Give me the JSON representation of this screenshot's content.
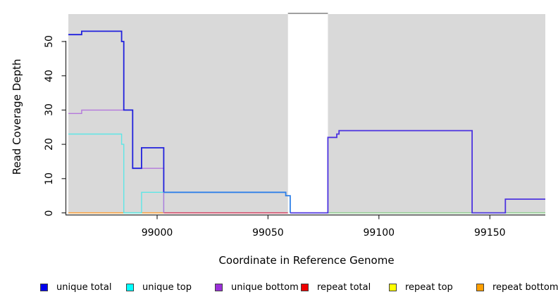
{
  "chart_data": {
    "type": "line",
    "title": "",
    "xlabel": "Coordinate in Reference Genome",
    "ylabel": "Read Coverage Depth",
    "xlim": [
      98960,
      99175
    ],
    "ylim": [
      0,
      58
    ],
    "xticks": [
      99000,
      99050,
      99100,
      99150
    ],
    "yticks": [
      0,
      10,
      20,
      30,
      40,
      50
    ],
    "grid": false,
    "legend_position": "bottom",
    "background": "#d9d9d9",
    "masked_region": {
      "x1": 99059,
      "x2": 99077,
      "fill": "#ffffff",
      "border_top": "#a0a0a0"
    },
    "step_semantics": "each [x,y] pair holds value y from x until the next pair's x",
    "series": [
      {
        "name": "unique total",
        "color": "#0000ee",
        "steps": [
          [
            98960,
            52
          ],
          [
            98966,
            53
          ],
          [
            98984,
            50
          ],
          [
            98985,
            30
          ],
          [
            98989,
            13
          ],
          [
            98993,
            19
          ],
          [
            99003,
            6
          ],
          [
            99058,
            5
          ],
          [
            99060,
            0
          ],
          [
            99077,
            22
          ],
          [
            99081,
            23
          ],
          [
            99082,
            24
          ],
          [
            99142,
            0
          ],
          [
            99157,
            4
          ],
          [
            99175,
            4
          ]
        ]
      },
      {
        "name": "unique top",
        "color": "#00ffff",
        "steps": [
          [
            98960,
            23
          ],
          [
            98984,
            20
          ],
          [
            98985,
            0
          ],
          [
            98993,
            6
          ],
          [
            99003,
            0
          ],
          [
            99175,
            0
          ]
        ]
      },
      {
        "name": "unique bottom",
        "color": "#9b30d9",
        "steps": [
          [
            98960,
            29
          ],
          [
            98966,
            30
          ],
          [
            98989,
            13
          ],
          [
            99003,
            0
          ],
          [
            99175,
            0
          ]
        ]
      },
      {
        "name": "repeat total",
        "color": "#ee0000",
        "steps": [
          [
            98960,
            0
          ],
          [
            99175,
            0
          ]
        ]
      },
      {
        "name": "repeat top",
        "color": "#ffff00",
        "steps": [
          [
            98960,
            0
          ],
          [
            99175,
            0
          ]
        ]
      },
      {
        "name": "repeat bottom",
        "color": "#ff9f00",
        "steps": [
          [
            98960,
            0
          ],
          [
            99175,
            0
          ]
        ]
      }
    ],
    "render_paths": [
      {
        "name": "zero-orange-left",
        "color": "#ff9d33",
        "width": 1.4,
        "steps": [
          [
            98960,
            0
          ],
          [
            98985,
            0
          ]
        ]
      },
      {
        "name": "zero-green-left",
        "color": "#86d6a0",
        "width": 1.4,
        "steps": [
          [
            98985,
            0
          ],
          [
            98993,
            0
          ]
        ]
      },
      {
        "name": "zero-orange-mid",
        "color": "#ff9d33",
        "width": 1.4,
        "steps": [
          [
            98993,
            0
          ],
          [
            99003,
            0
          ]
        ]
      },
      {
        "name": "zero-crimson",
        "color": "#d23b5c",
        "width": 1.4,
        "steps": [
          [
            99003,
            0
          ],
          [
            99059,
            0
          ]
        ]
      },
      {
        "name": "zero-green-right",
        "color": "#8ecf8e",
        "width": 1.4,
        "steps": [
          [
            99077,
            0
          ],
          [
            99175,
            0
          ]
        ]
      },
      {
        "name": "unique-top",
        "color": "#5ee6e6",
        "width": 1.4,
        "steps": [
          [
            98960,
            23
          ],
          [
            98984,
            20
          ],
          [
            98985,
            0
          ],
          [
            98993,
            6
          ],
          [
            99003,
            0
          ]
        ]
      },
      {
        "name": "unique-bottom",
        "color": "#b478dc",
        "width": 1.4,
        "steps": [
          [
            98960,
            29
          ],
          [
            98966,
            30
          ],
          [
            98989,
            13
          ],
          [
            99003,
            0
          ]
        ]
      },
      {
        "name": "unique-total-left",
        "color": "#2121dd",
        "width": 1.8,
        "steps": [
          [
            98960,
            52
          ],
          [
            98966,
            53
          ],
          [
            98984,
            50
          ],
          [
            98985,
            30
          ],
          [
            98989,
            13
          ],
          [
            98993,
            19
          ],
          [
            99003,
            6
          ]
        ]
      },
      {
        "name": "unique-total-mid",
        "color": "#2f80e8",
        "width": 1.8,
        "steps": [
          [
            99003,
            6
          ],
          [
            99058,
            5
          ],
          [
            99060,
            0
          ]
        ]
      },
      {
        "name": "unique-total-right",
        "color": "#4c33e0",
        "width": 1.8,
        "steps": [
          [
            99060,
            0
          ],
          [
            99077,
            22
          ],
          [
            99081,
            23
          ],
          [
            99082,
            24
          ],
          [
            99142,
            0
          ],
          [
            99157,
            4
          ],
          [
            99175,
            4
          ]
        ]
      }
    ]
  },
  "legend": {
    "items": [
      {
        "label": "unique total",
        "color": "#0000ee"
      },
      {
        "label": "unique top",
        "color": "#00ffff"
      },
      {
        "label": "unique bottom",
        "color": "#9b30d9"
      },
      {
        "label": "repeat total",
        "color": "#ee0000"
      },
      {
        "label": "repeat top",
        "color": "#ffff00"
      },
      {
        "label": "repeat bottom",
        "color": "#ff9f00"
      }
    ]
  }
}
